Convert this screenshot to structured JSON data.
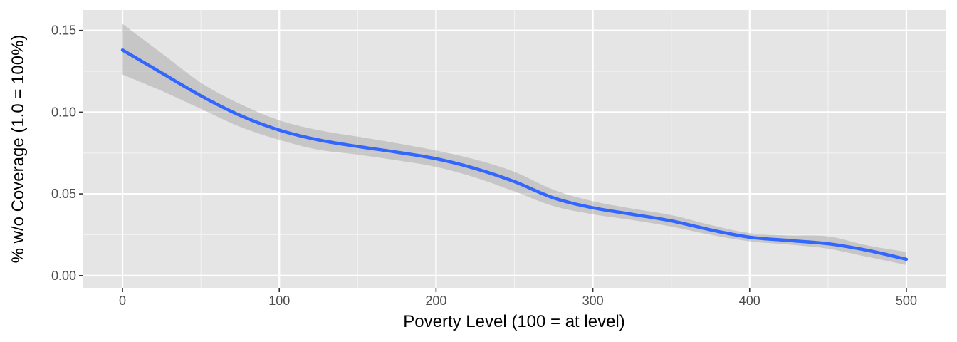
{
  "chart_data": {
    "type": "line",
    "title": "",
    "xlabel": "Poverty Level (100 = at level)",
    "ylabel": "% w/o Coverage (1.0 = 100%)",
    "xlim": [
      -25,
      525
    ],
    "ylim": [
      -0.0075,
      0.1625
    ],
    "x_ticks": [
      0,
      100,
      200,
      300,
      400,
      500
    ],
    "x_tick_labels": [
      "0",
      "100",
      "200",
      "300",
      "400",
      "500"
    ],
    "y_ticks": [
      0.0,
      0.05,
      0.1,
      0.15
    ],
    "y_tick_labels": [
      "0.00",
      "0.05",
      "0.10",
      "0.15"
    ],
    "grid": true,
    "series": [
      {
        "x": [
          0,
          25,
          50,
          75,
          100,
          125,
          150,
          175,
          200,
          225,
          250,
          275,
          300,
          325,
          350,
          375,
          400,
          425,
          450,
          475,
          500
        ],
        "y": [
          0.138,
          0.124,
          0.11,
          0.098,
          0.089,
          0.083,
          0.079,
          0.0755,
          0.0715,
          0.0655,
          0.0575,
          0.0475,
          0.0415,
          0.0375,
          0.0335,
          0.028,
          0.0235,
          0.0215,
          0.0195,
          0.0155,
          0.01
        ],
        "lower": [
          0.123,
          0.113,
          0.102,
          0.091,
          0.083,
          0.077,
          0.074,
          0.0705,
          0.0665,
          0.06,
          0.0515,
          0.0425,
          0.0375,
          0.034,
          0.03,
          0.025,
          0.021,
          0.019,
          0.0165,
          0.0115,
          0.0065
        ],
        "upper": [
          0.154,
          0.136,
          0.118,
          0.105,
          0.095,
          0.089,
          0.085,
          0.081,
          0.0765,
          0.071,
          0.0635,
          0.0525,
          0.0455,
          0.041,
          0.037,
          0.031,
          0.026,
          0.0245,
          0.024,
          0.0185,
          0.0145
        ]
      }
    ]
  },
  "colors": {
    "panel_bg": "#e5e5e5",
    "grid_major": "#ffffff",
    "grid_minor": "#f2f2f2",
    "line": "#3366ff",
    "ribbon": "#999999",
    "tick_text": "#4d4d4d",
    "tick_mark": "#333333",
    "axis_title": "#000000"
  }
}
